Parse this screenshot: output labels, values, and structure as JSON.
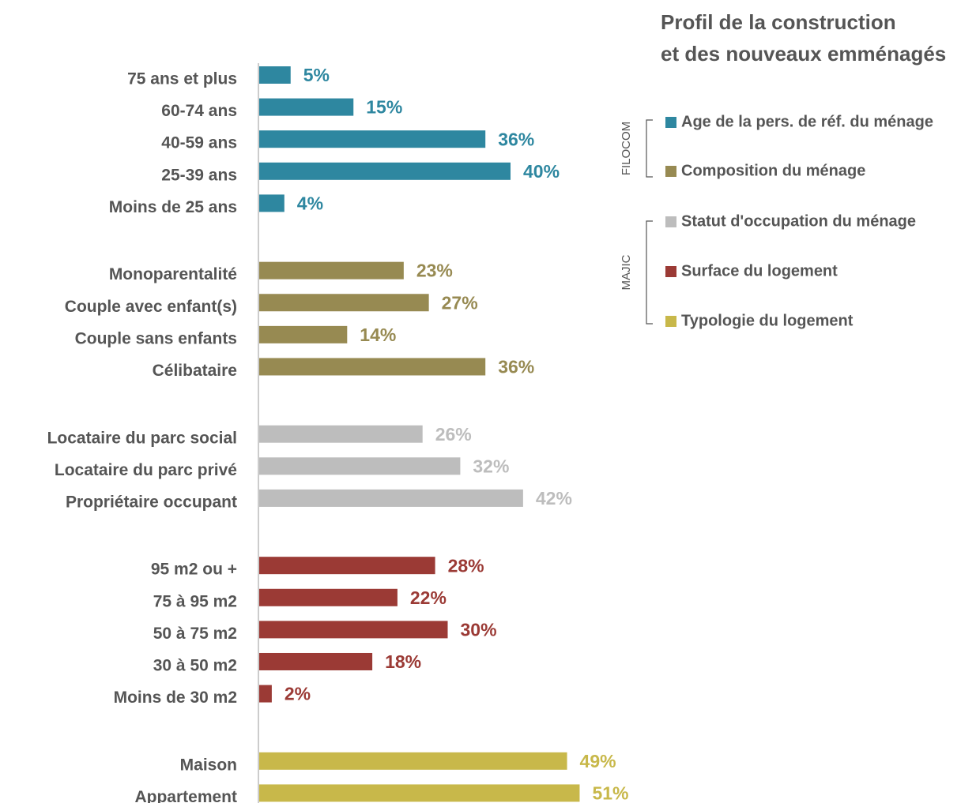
{
  "chart_data": {
    "type": "bar",
    "orientation": "horizontal",
    "title": [
      "Profil de la construction",
      "et des nouveaux emménagés"
    ],
    "sources": [
      {
        "name": "FILOCOM",
        "groups": [
          {
            "name": "Age de la pers. de réf. du ménage",
            "color": "#2e87a0",
            "categories": [
              "75 ans et plus",
              "60-74 ans",
              "40-59 ans",
              "25-39 ans",
              "Moins de 25 ans"
            ],
            "values": [
              5,
              15,
              36,
              40,
              4
            ],
            "value_labels": [
              "5%",
              "15%",
              "36%",
              "40%",
              "4%"
            ]
          },
          {
            "name": "Composition du ménage",
            "color": "#978a52",
            "categories": [
              "Monoparentalité",
              "Couple avec enfant(s)",
              "Couple sans enfants",
              "Célibataire"
            ],
            "values": [
              23,
              27,
              14,
              36
            ],
            "value_labels": [
              "23%",
              "27%",
              "14%",
              "36%"
            ]
          }
        ]
      },
      {
        "name": "MAJIC",
        "groups": [
          {
            "name": "Statut d'occupation du ménage",
            "color": "#bdbdbd",
            "categories": [
              "Locataire du parc social",
              "Locataire du parc privé",
              "Propriétaire occupant"
            ],
            "values": [
              26,
              32,
              42
            ],
            "value_labels": [
              "26%",
              "32%",
              "42%"
            ]
          },
          {
            "name": "Surface du logement",
            "color": "#9b3a35",
            "categories": [
              "95 m2 ou +",
              "75 à 95 m2",
              "50 à 75 m2",
              "30 à 50 m2",
              "Moins de 30 m2"
            ],
            "values": [
              28,
              22,
              30,
              18,
              2
            ],
            "value_labels": [
              "28%",
              "22%",
              "30%",
              "18%",
              "2%"
            ]
          },
          {
            "name": "Typologie du logement",
            "color": "#c8b84a",
            "categories": [
              "Maison",
              "Appartement"
            ],
            "values": [
              49,
              51
            ],
            "value_labels": [
              "49%",
              "51%"
            ]
          }
        ]
      }
    ]
  }
}
